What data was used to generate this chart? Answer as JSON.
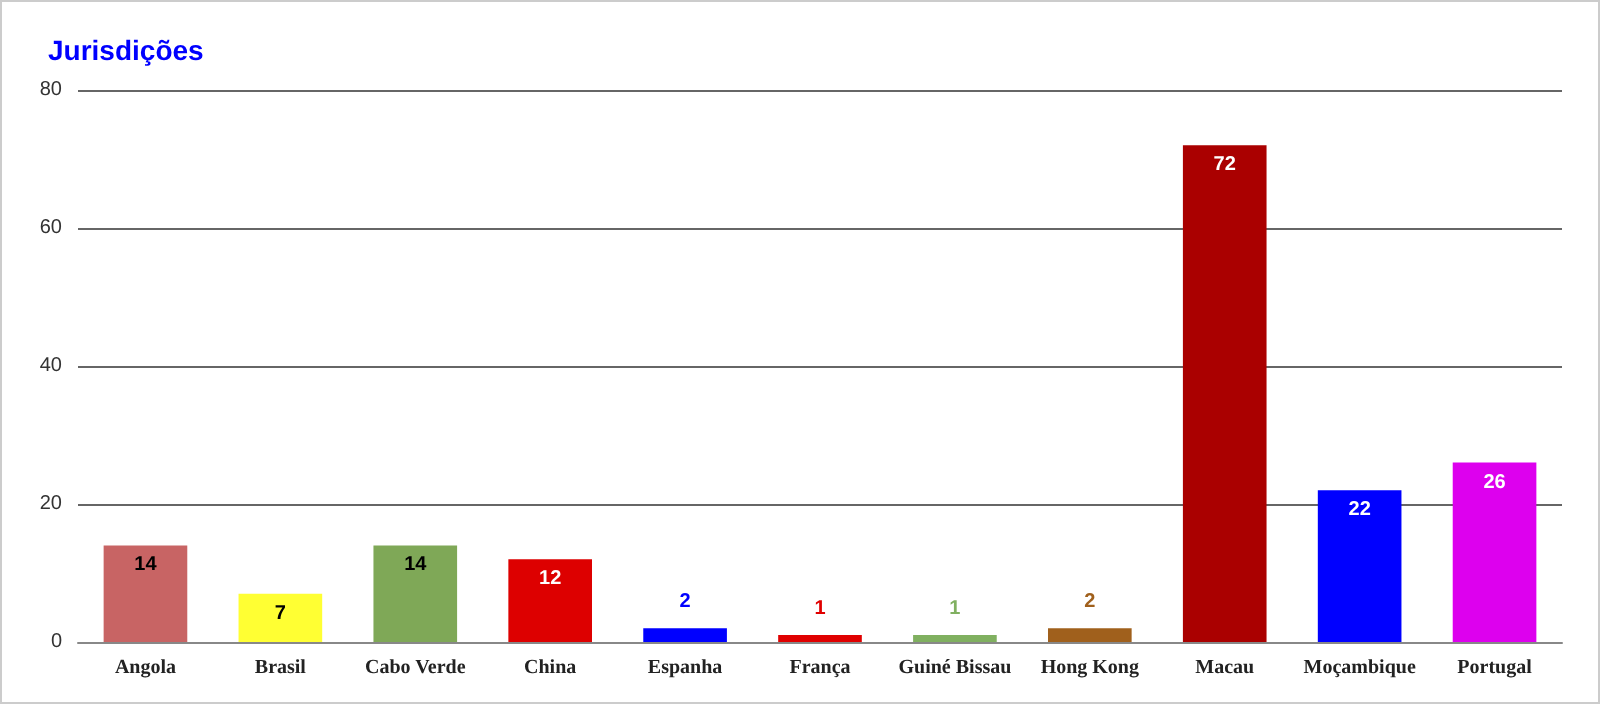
{
  "chart_data": {
    "type": "bar",
    "title": "Jurisdições",
    "categories": [
      "Angola",
      "Brasil",
      "Cabo Verde",
      "China",
      "Espanha",
      "França",
      "Guiné Bissau",
      "Hong Kong",
      "Macau",
      "Moçambique",
      "Portugal"
    ],
    "values": [
      14,
      7,
      14,
      12,
      2,
      1,
      1,
      2,
      72,
      22,
      26
    ],
    "colors": [
      "#c86464",
      "#ffff33",
      "#7fa857",
      "#dd0000",
      "#0000ff",
      "#e00000",
      "#80b060",
      "#a0601c",
      "#aa0000",
      "#0000ff",
      "#dd00ee"
    ],
    "ylim": [
      0,
      80
    ],
    "yticks": [
      0,
      20,
      40,
      60,
      80
    ],
    "grid": "y",
    "data_labels": true
  }
}
